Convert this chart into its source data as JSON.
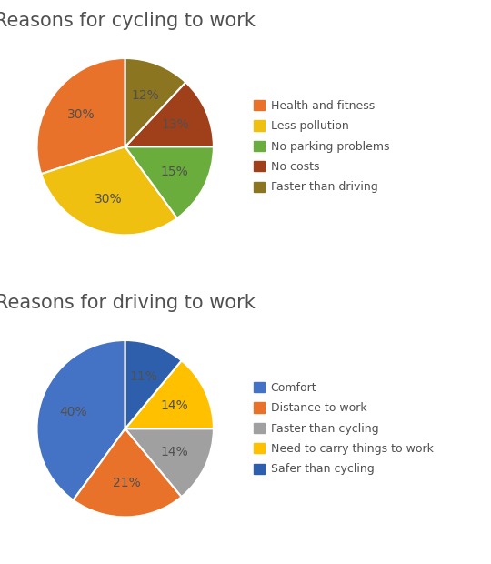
{
  "cycling": {
    "title": "Reasons for cycling to work",
    "labels": [
      "Health and fitness",
      "Less pollution",
      "No parking problems",
      "No costs",
      "Faster than driving"
    ],
    "values": [
      30,
      30,
      15,
      13,
      12
    ],
    "colors": [
      "#E8722A",
      "#F0C010",
      "#6AAD3C",
      "#A0401A",
      "#8B7520"
    ],
    "pct_labels": [
      "30%",
      "30%",
      "15%",
      "13%",
      "12%"
    ],
    "startangle": 90
  },
  "driving": {
    "title": "Reasons for driving to work",
    "labels": [
      "Comfort",
      "Distance to work",
      "Faster than cycling",
      "Need to carry things to work",
      "Safer than cycling"
    ],
    "values": [
      40,
      21,
      14,
      14,
      11
    ],
    "colors": [
      "#4472C4",
      "#E8722A",
      "#A0A0A0",
      "#FFC000",
      "#2E5FAC"
    ],
    "pct_labels": [
      "40%",
      "21%",
      "14%",
      "14%",
      "11%"
    ],
    "startangle": 90
  },
  "title_fontsize": 15,
  "pct_fontsize": 10,
  "legend_fontsize": 9,
  "title_color": "#505050",
  "pct_color": "#505050",
  "legend_text_color": "#505050",
  "bg_color": "#ffffff"
}
